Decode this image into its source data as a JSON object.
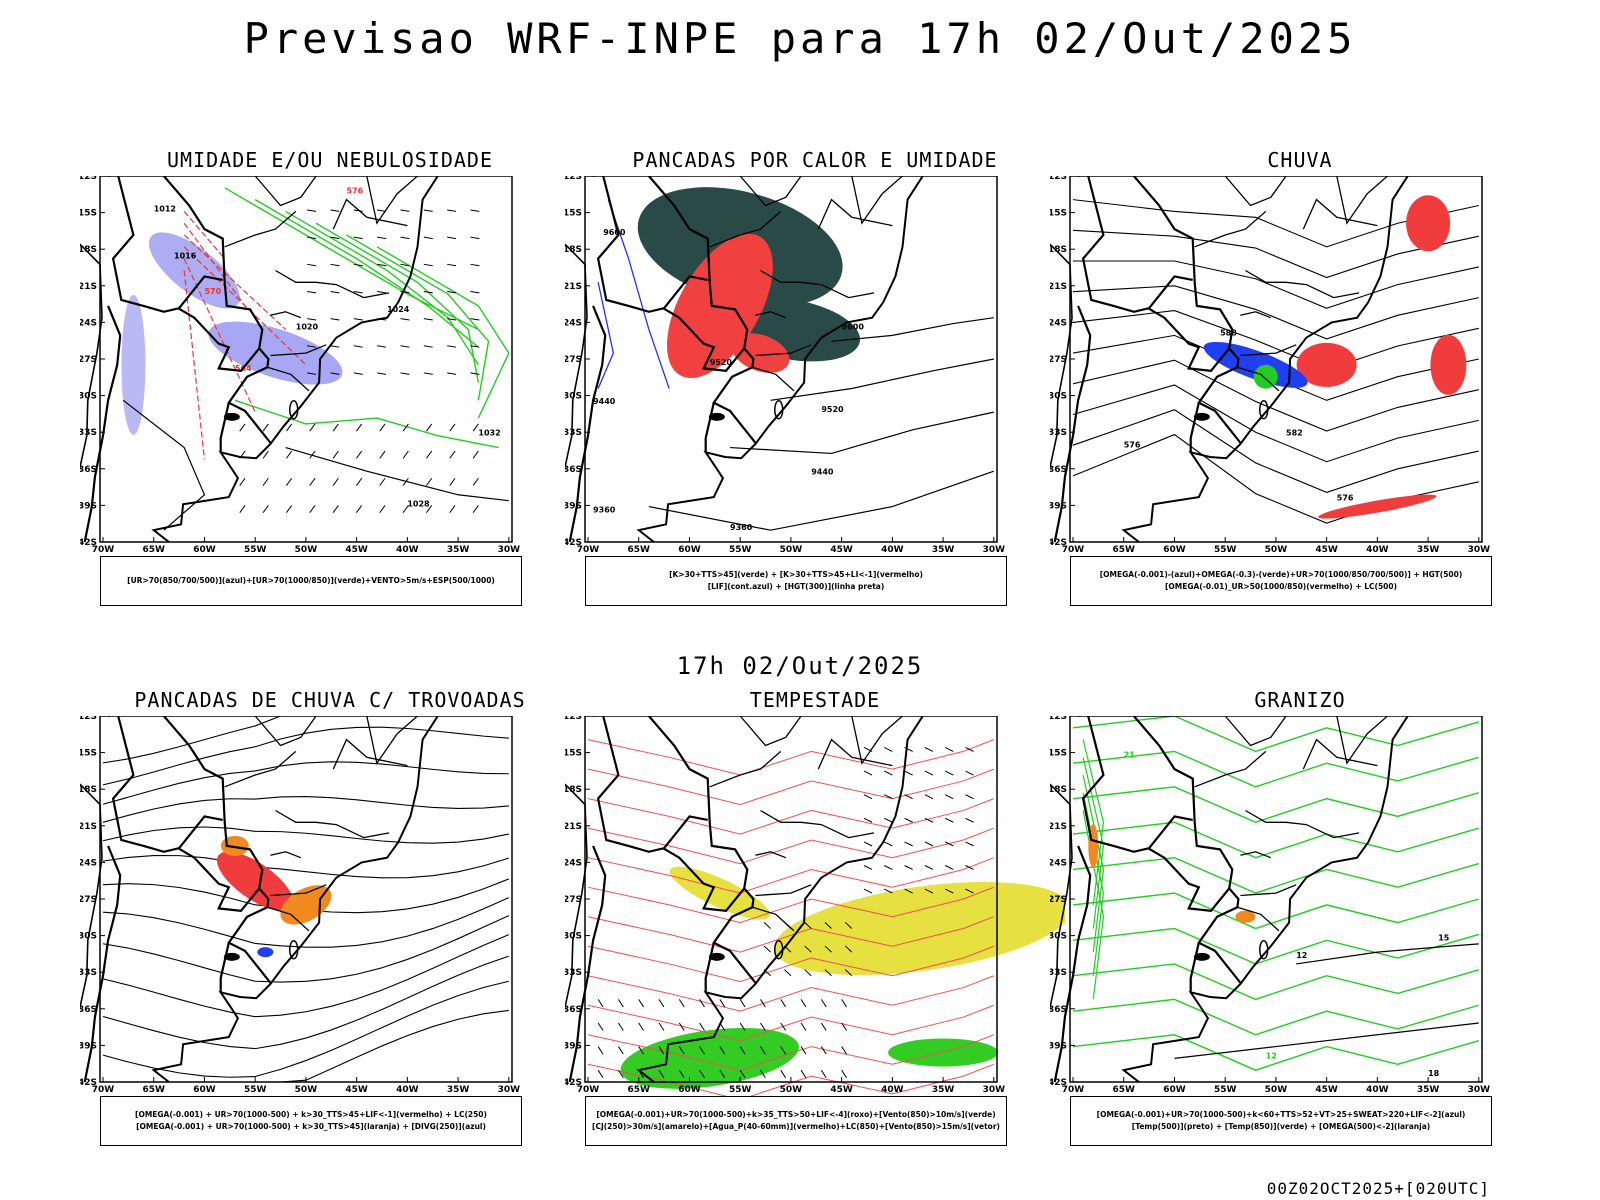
{
  "header": {
    "title": "Previsao WRF-INPE  para 17h 02/Out/2025"
  },
  "middle_date": "17h 02/Out/2025",
  "footer": "00Z02OCT2025+[020UTC]",
  "axes": {
    "lat_labels": [
      "12S",
      "15S",
      "18S",
      "21S",
      "24S",
      "27S",
      "30S",
      "33S",
      "36S",
      "39S",
      "42S"
    ],
    "lon_labels": [
      "70W",
      "65W",
      "60W",
      "55W",
      "50W",
      "45W",
      "40W",
      "35W",
      "30W"
    ]
  },
  "panels": [
    {
      "title": "UMIDADE E/OU NEBULOSIDADE",
      "legend": [
        "[UR>70(850/700/500)](azul)+[UR>70(1000/850)](verde)+VENTO>5m/s+ESP(500/1000)"
      ],
      "contour_labels": [
        "1012",
        "1016",
        "1020",
        "1024",
        "1028",
        "1032",
        "576",
        "564",
        "570"
      ],
      "colors": {
        "high_humidity": "#8a8af0",
        "low_humidity": "#22cc22",
        "thickness": "#ee3333"
      }
    },
    {
      "title": "PANCADAS POR CALOR E UMIDADE",
      "legend": [
        "[K>30+TTS>45](verde) + [K>30+TTS>45+LI<-1](vermelho)",
        "[LIF](cont.azul) + [HGT(300)](linha preta)"
      ],
      "contour_labels": [
        "9600",
        "9520",
        "9440",
        "9360",
        "9600",
        "9520",
        "9440",
        "9360"
      ],
      "colors": {
        "green_area": "#2a4a48",
        "red_area": "#f04040",
        "lif": "#2233ee"
      }
    },
    {
      "title": "CHUVA",
      "legend": [
        "[OMEGA(-0.001)-(azul)+OMEGA(-0.3)-(verde)+UR>70(1000/850/700/500)] + HGT(500)",
        "[OMEGA(-0.01)_UR>50(1000/850)(vermelho) + LC(500)"
      ],
      "contour_labels": [
        "576",
        "582",
        "588",
        "576"
      ],
      "colors": {
        "red_area": "#f03c3c",
        "blue_area": "#2040f0",
        "green_area": "#22cc22"
      }
    },
    {
      "title": "PANCADAS DE CHUVA C/ TROVOADAS",
      "legend": [
        "[OMEGA(-0.001) + UR>70(1000-500) + k>30_TTS>45+LIF<-1](vermelho) + LC(250)",
        "[OMEGA(-0.001) + UR>70(1000-500) + k>30_TTS>45](laranja) + [DIVG(250)](azul)"
      ],
      "contour_labels": [],
      "colors": {
        "red_area": "#f03c3c",
        "orange_area": "#f08a20",
        "blue_area": "#2040f0"
      }
    },
    {
      "title": "TEMPESTADE",
      "legend": [
        "[OMEGA(-0.001)+UR>70(1000-500)+k>35_TTS>50+LIF<-4](roxo)+[Vento(850)>10m/s](verde)",
        "[CJ(250)>30m/s](amarelo)+[Agua_P(40-60mm)](vermelho)+LC(850)+[Vento(850)>15m/s](vetor)"
      ],
      "contour_labels": [],
      "colors": {
        "yellow_area": "#e6e040",
        "green_area": "#33cc22",
        "red_lines": "#f05050"
      }
    },
    {
      "title": "GRANIZO",
      "legend": [
        "[OMEGA(-0.001)+UR>70(1000-500)+k<60+TTS>52+VT>25+SWEAT>220+LIF<-2](azul)",
        "[Temp(500)](preto) + [Temp(850)](verde) + [OMEGA(500)<-2](laranja)"
      ],
      "contour_labels": [
        "12",
        "15",
        "21",
        "12",
        "18"
      ],
      "colors": {
        "green_lines": "#22cc22",
        "orange": "#f08a20"
      }
    }
  ]
}
